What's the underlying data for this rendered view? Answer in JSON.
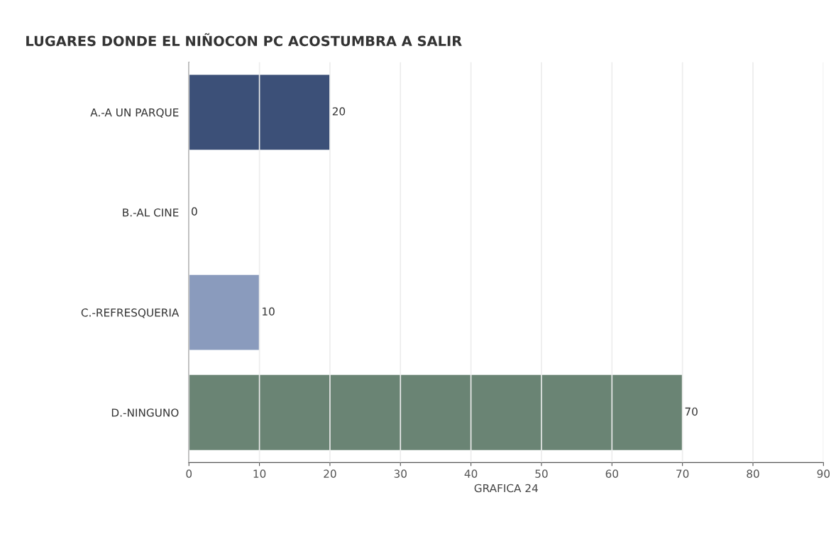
{
  "chart_data": {
    "type": "bar",
    "orientation": "horizontal",
    "title": "LUGARES DONDE EL NIÑOCON PC ACOSTUMBRA A SALIR",
    "xlabel": "GRAFICA 24",
    "categories": [
      "A.-A UN PARQUE",
      "B.-AL CINE",
      "C.-REFRESQUERIA",
      "D.-NINGUNO"
    ],
    "values": [
      20,
      0,
      10,
      70
    ],
    "colors": [
      "#3c5078",
      "#c0504d",
      "#8a9bbd",
      "#6a8474"
    ],
    "xlim": [
      0,
      90
    ],
    "xticks": [
      0,
      10,
      20,
      30,
      40,
      50,
      60,
      70,
      80,
      90
    ],
    "grid": "x",
    "data_labels": true
  }
}
